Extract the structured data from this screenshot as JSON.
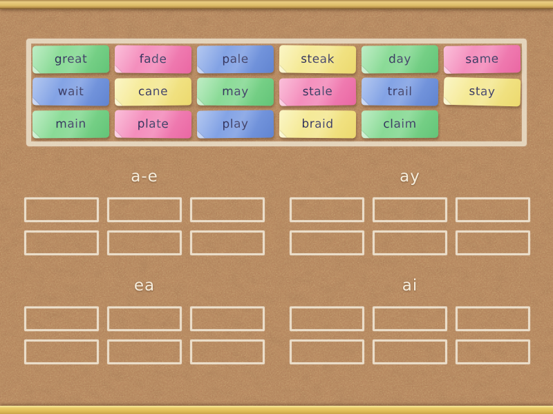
{
  "game": {
    "type": "group-sort",
    "tray": {
      "cards": [
        {
          "label": "great",
          "color": "green"
        },
        {
          "label": "fade",
          "color": "pink"
        },
        {
          "label": "pale",
          "color": "blue"
        },
        {
          "label": "steak",
          "color": "yellow"
        },
        {
          "label": "day",
          "color": "green"
        },
        {
          "label": "same",
          "color": "pink"
        },
        {
          "label": "wait",
          "color": "blue"
        },
        {
          "label": "cane",
          "color": "yellow"
        },
        {
          "label": "may",
          "color": "green"
        },
        {
          "label": "stale",
          "color": "pink"
        },
        {
          "label": "trail",
          "color": "blue"
        },
        {
          "label": "stay",
          "color": "yellow"
        },
        {
          "label": "main",
          "color": "green"
        },
        {
          "label": "plate",
          "color": "pink"
        },
        {
          "label": "play",
          "color": "blue"
        },
        {
          "label": "braid",
          "color": "yellow"
        },
        {
          "label": "claim",
          "color": "green"
        }
      ]
    },
    "groups": [
      {
        "label": "a-e",
        "slot_count": 6
      },
      {
        "label": "ay",
        "slot_count": 6
      },
      {
        "label": "ea",
        "slot_count": 6
      },
      {
        "label": "ai",
        "slot_count": 6
      }
    ],
    "palette": {
      "green": {
        "light": "#a3e5ac",
        "base": "#7fd68d",
        "dark": "#63c478"
      },
      "pink": {
        "light": "#f8a4ca",
        "base": "#f285b7",
        "dark": "#ea67a3"
      },
      "blue": {
        "light": "#93b0ea",
        "base": "#7b9ce2",
        "dark": "#6184d0"
      },
      "yellow": {
        "light": "#f9f1ad",
        "base": "#f3e68c",
        "dark": "#ecd96e"
      }
    },
    "board_colors": {
      "cork": "#b5835c",
      "chalk": "#efe4cf",
      "card_text": "#30305a"
    }
  }
}
